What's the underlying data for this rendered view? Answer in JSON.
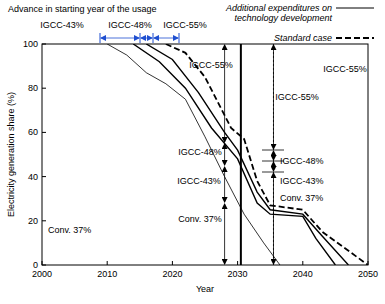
{
  "chart_data": {
    "type": "line",
    "x_label": "Year",
    "y_label": "Electricity generation share (%)",
    "xlim": [
      2000,
      2050
    ],
    "xticks": [
      2000,
      2010,
      2020,
      2030,
      2040,
      2050
    ],
    "ylim": [
      0,
      100
    ],
    "yticks": [
      0,
      20,
      40,
      60,
      80,
      100
    ],
    "grid": false,
    "legend": "top-right",
    "series": [
      {
        "name": "Additional expenditures on technology development",
        "color": "#000000",
        "line_style": "solid",
        "x": [
          2010,
          2013,
          2016,
          2019,
          2022,
          2025,
          2028,
          2031,
          2034,
          2036.5
        ],
        "values": [
          100,
          95,
          87,
          82,
          75,
          58,
          40,
          23,
          10,
          0
        ]
      },
      {
        "name": "Additional expenditures on technology development",
        "color": "#000000",
        "line_style": "solid",
        "x": [
          2014,
          2018,
          2022,
          2026,
          2030,
          2033,
          2035,
          2040,
          2042,
          2045
        ],
        "values": [
          100,
          92,
          80,
          62,
          48,
          28,
          23,
          22,
          12,
          0
        ]
      },
      {
        "name": "Additional expenditures on technology development",
        "color": "#000000",
        "line_style": "solid",
        "x": [
          2016,
          2020,
          2024,
          2028,
          2030,
          2033,
          2035,
          2040,
          2043,
          2047
        ],
        "values": [
          100,
          93,
          78,
          60,
          52,
          33,
          25,
          23,
          13,
          0
        ]
      },
      {
        "name": "Standard case",
        "color": "#000000",
        "line_style": "dashed",
        "x": [
          2019,
          2022,
          2025,
          2029,
          2031,
          2033,
          2035,
          2040,
          2043,
          2050
        ],
        "values": [
          100,
          96,
          85,
          62,
          57,
          38,
          27,
          25,
          15,
          0
        ]
      }
    ],
    "vlines": [
      {
        "x": 2030.5,
        "line_style": "solid"
      },
      {
        "x": 2035.5,
        "line_style": "dotted"
      }
    ],
    "annotations": [
      "Advance in starting year of the usage",
      "IGCC-43%",
      "IGCC-48%",
      "IGCC-55%",
      "IGCC-55%",
      "IGCC-55%",
      "IGCC-55%",
      "IGCC-48%",
      "IGCC-43%",
      "Conv. 37%",
      "Conv. 37%",
      "IGCC-48%",
      "IGCC-43%",
      "Conv. 37%"
    ]
  }
}
